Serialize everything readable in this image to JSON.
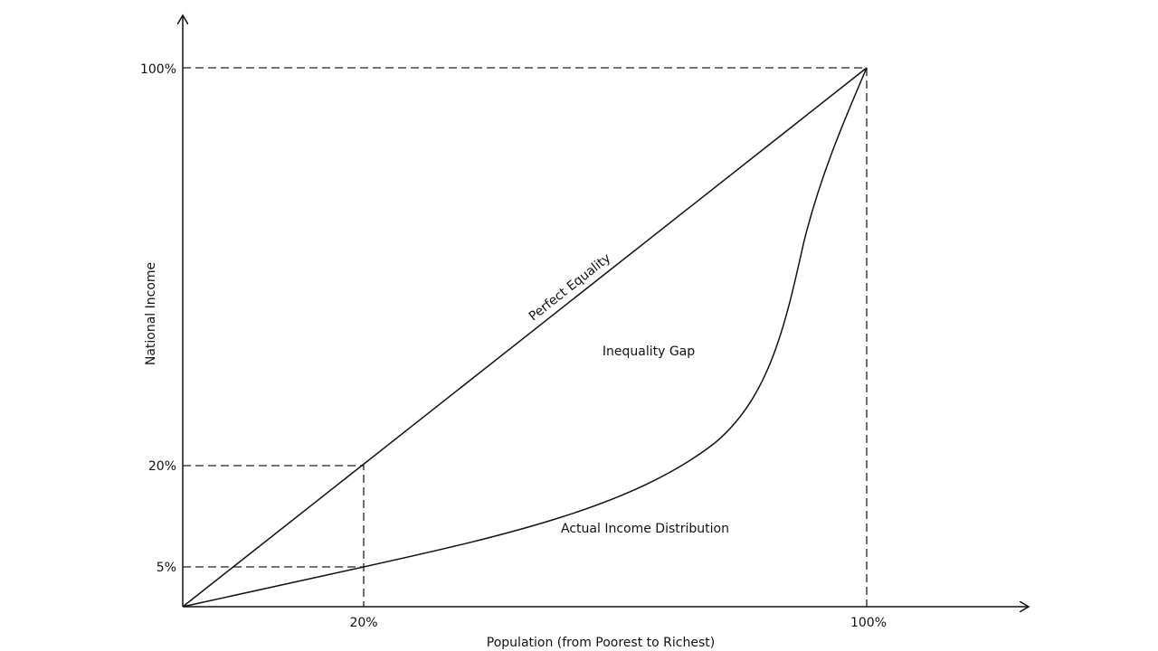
{
  "axes": {
    "y_label": "National Income",
    "x_label": "Population (from Poorest to Richest)",
    "y_ticks": [
      "100%",
      "20%",
      "5%"
    ],
    "x_ticks": [
      "20%",
      "100%"
    ]
  },
  "curves": {
    "equality": "Perfect Equality",
    "actual": "Actual Income Distribution"
  },
  "regions": {
    "gap": "Inequality Gap"
  }
}
